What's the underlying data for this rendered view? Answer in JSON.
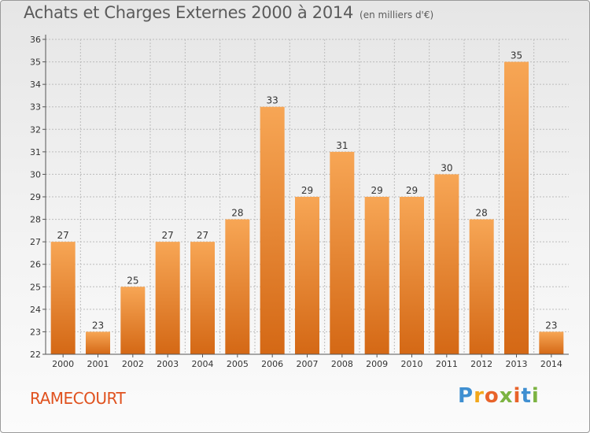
{
  "header": {
    "title": "Achats et Charges Externes 2000 à 2014",
    "subtitle": "(en milliers d'€)"
  },
  "commune": "RAMECOURT",
  "logo": {
    "letters": [
      "P",
      "r",
      "o",
      "x",
      "i",
      "t",
      "i"
    ],
    "colors": [
      "#3f8fd1",
      "#f2a71b",
      "#e8632a",
      "#7cb342",
      "#e8632a",
      "#3f8fd1",
      "#7cb342"
    ]
  },
  "colors": {
    "bar_top": "#f7a655",
    "bar_bottom": "#d46815",
    "axis": "#555555",
    "grid": "#bcbcbc",
    "text": "#333333"
  },
  "chart_data": {
    "type": "bar",
    "categories": [
      "2000",
      "2001",
      "2002",
      "2003",
      "2004",
      "2005",
      "2006",
      "2007",
      "2008",
      "2009",
      "2010",
      "2011",
      "2012",
      "2013",
      "2014"
    ],
    "values": [
      27,
      23,
      25,
      27,
      27,
      28,
      33,
      29,
      31,
      29,
      29,
      30,
      28,
      35,
      23
    ],
    "ylim": [
      22,
      36
    ],
    "yticks": [
      22,
      23,
      24,
      25,
      26,
      27,
      28,
      29,
      30,
      31,
      32,
      33,
      34,
      35,
      36
    ],
    "grid": true,
    "data_labels": true
  }
}
